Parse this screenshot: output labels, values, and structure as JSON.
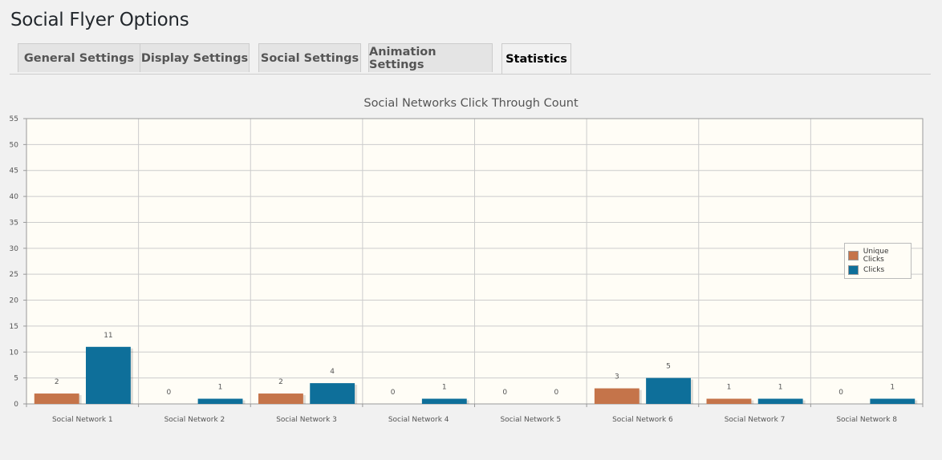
{
  "page": {
    "title": "Social Flyer Options"
  },
  "tabs": [
    {
      "label": "General Settings",
      "active": false
    },
    {
      "label": "Display Settings",
      "active": false
    },
    {
      "label": "Social Settings",
      "active": false
    },
    {
      "label": "Animation Settings",
      "active": false
    },
    {
      "label": "Statistics",
      "active": true
    }
  ],
  "colors": {
    "unique_clicks": "#c5744a",
    "clicks": "#0e6f9a",
    "plot_background": "#fffdf6",
    "grid": "#cccccc"
  },
  "chart_data": {
    "type": "bar",
    "title": "Social Networks Click Through Count",
    "xlabel": "",
    "ylabel": "",
    "ylim": [
      0,
      55
    ],
    "yticks": [
      0,
      5,
      10,
      15,
      20,
      25,
      30,
      35,
      40,
      45,
      50,
      55
    ],
    "grid": true,
    "legend_position": "right",
    "categories": [
      "Social Network 1",
      "Social Network 2",
      "Social Network 3",
      "Social Network 4",
      "Social Network 5",
      "Social Network 6",
      "Social Network 7",
      "Social Network 8"
    ],
    "series": [
      {
        "name": "Unique Clicks",
        "values": [
          2,
          0,
          2,
          0,
          0,
          3,
          1,
          0
        ]
      },
      {
        "name": "Clicks",
        "values": [
          11,
          1,
          4,
          1,
          0,
          5,
          1,
          1
        ]
      }
    ]
  }
}
